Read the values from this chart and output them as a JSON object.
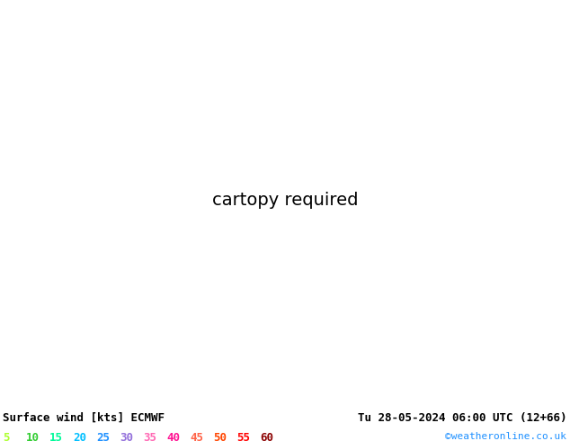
{
  "title_left": "Surface wind [kts] ECMWF",
  "title_right": "Tu 28-05-2024 06:00 UTC (12+66)",
  "credit": "©weatheronline.co.uk",
  "colorbar_labels": [
    "5",
    "10",
    "15",
    "20",
    "25",
    "30",
    "35",
    "40",
    "45",
    "50",
    "55",
    "60"
  ],
  "wind_speed_levels": [
    0,
    5,
    10,
    15,
    20,
    25,
    30,
    35,
    40,
    45,
    50,
    55,
    60,
    80
  ],
  "map_colors": [
    "#adff2f",
    "#7cfc00",
    "#32cd32",
    "#00fa9a",
    "#00bfff",
    "#1e90ff",
    "#9370db",
    "#ff69b4",
    "#ff1493",
    "#ff6347",
    "#ff4500",
    "#ff0000",
    "#8b0000"
  ],
  "bg_color": "#ffffff",
  "legend_label_colors": [
    "#adff2f",
    "#32cd32",
    "#00fa9a",
    "#00bfff",
    "#1e90ff",
    "#9370db",
    "#ff69b4",
    "#ff1493",
    "#ff6347",
    "#ff4500",
    "#ff0000",
    "#8b0000"
  ],
  "lon_min": 0.0,
  "lon_max": 40.0,
  "lat_min": 53.0,
  "lat_max": 72.0
}
